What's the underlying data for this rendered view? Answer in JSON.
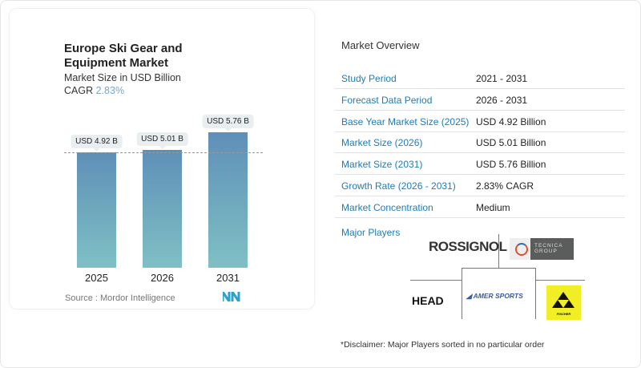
{
  "chart_data": {
    "type": "bar",
    "title": "Europe Ski Gear and Equipment Market",
    "subtitle": "Market Size in USD Billion",
    "cagr_label": "CAGR",
    "cagr_value": "2.83%",
    "categories": [
      "2025",
      "2026",
      "2031"
    ],
    "values": [
      4.92,
      5.01,
      5.76
    ],
    "data_labels": [
      "USD 4.92 B",
      "USD 5.01 B",
      "USD 5.76 B"
    ],
    "colors": {
      "bar_top": "#5f8fb8",
      "bar_bottom": "#7fc0c4"
    }
  },
  "source": "Source :  Mordor Intelligence",
  "overview": {
    "title": "Market Overview",
    "rows": [
      {
        "k": "Study Period",
        "v": "2021 - 2031"
      },
      {
        "k": "Forecast Data Period",
        "v": "2026 - 2031"
      },
      {
        "k": "Base Year Market Size (2025)",
        "v": "USD 4.92 Billion"
      },
      {
        "k": "Market Size (2026)",
        "v": "USD 5.01 Billion"
      },
      {
        "k": "Market Size (2031)",
        "v": "USD 5.76 Billion"
      },
      {
        "k": "Growth Rate (2026 - 2031)",
        "v": "2.83% CAGR"
      },
      {
        "k": "Market Concentration",
        "v": "Medium"
      }
    ]
  },
  "players": {
    "title": "Major Players",
    "logos": [
      "ROSSIGNOL",
      "TECNICA GROUP",
      "HEAD",
      "AMER SPORTS",
      "FISCHER"
    ]
  },
  "disclaimer": "*Disclaimer: Major Players sorted in no particular order"
}
